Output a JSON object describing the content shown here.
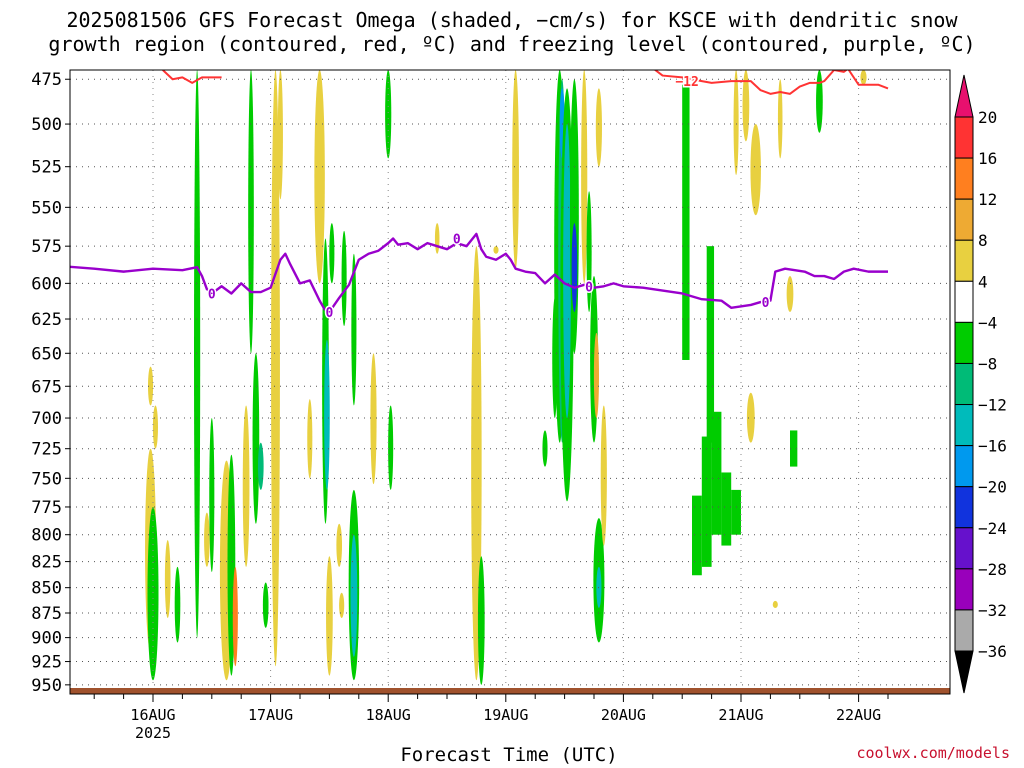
{
  "title": {
    "line1": "2025081506 GFS Forecast Omega (shaded, −cm/s) for KSCE with dendritic snow",
    "line2": "growth region (contoured, red, ºC) and freezing level (contoured, purple, ºC)"
  },
  "credit": "coolwx.com/models",
  "chart_data": {
    "type": "heatmap",
    "xlabel": "Forecast Time (UTC)",
    "ylabel": "",
    "x_ticks": [
      "16AUG",
      "17AUG",
      "18AUG",
      "19AUG",
      "20AUG",
      "21AUG",
      "22AUG"
    ],
    "x_tick_sub": "2025",
    "x_range_hours": [
      -20,
      150
    ],
    "y_ticks": [
      475,
      500,
      525,
      550,
      575,
      600,
      625,
      650,
      675,
      700,
      725,
      750,
      775,
      800,
      825,
      850,
      875,
      900,
      925,
      950
    ],
    "y_range_hpa": [
      470,
      960
    ],
    "grid": true,
    "colorbar": {
      "labels": [
        "20",
        "16",
        "12",
        "8",
        "4",
        "−4",
        "−8",
        "−12",
        "−16",
        "−20",
        "−24",
        "−28",
        "−32",
        "−36"
      ],
      "colors": [
        "#ff3333",
        "#ff7f1f",
        "#eeaa33",
        "#e8d040",
        "#ffffff",
        "#00cc00",
        "#00bb77",
        "#00bbbb",
        "#0099ee",
        "#1133dd",
        "#6611cc",
        "#9900bb",
        "#aaaaaa"
      ],
      "top_arrow": "#e8106e",
      "bottom_arrow": "#000000"
    },
    "freezing_level": {
      "label": "0",
      "color": "#9900cc",
      "points": [
        [
          -20,
          588
        ],
        [
          -12,
          590
        ],
        [
          -6,
          592
        ],
        [
          0,
          590
        ],
        [
          6,
          591
        ],
        [
          9,
          589
        ],
        [
          10,
          595
        ],
        [
          11,
          604
        ],
        [
          12,
          607
        ],
        [
          14,
          602
        ],
        [
          16,
          607
        ],
        [
          18,
          600
        ],
        [
          20,
          606
        ],
        [
          22,
          606
        ],
        [
          24,
          603
        ],
        [
          26,
          584
        ],
        [
          27,
          580
        ],
        [
          28,
          587
        ],
        [
          30,
          600
        ],
        [
          32,
          598
        ],
        [
          34,
          612
        ],
        [
          35,
          618
        ],
        [
          36,
          620
        ],
        [
          38,
          610
        ],
        [
          40,
          601
        ],
        [
          42,
          584
        ],
        [
          44,
          580
        ],
        [
          46,
          578
        ],
        [
          48,
          573
        ],
        [
          49,
          570
        ],
        [
          50,
          574
        ],
        [
          52,
          573
        ],
        [
          54,
          577
        ],
        [
          56,
          573
        ],
        [
          58,
          575
        ],
        [
          60,
          577
        ],
        [
          62,
          573
        ],
        [
          64,
          575
        ],
        [
          66,
          567
        ],
        [
          67,
          577
        ],
        [
          68,
          582
        ],
        [
          70,
          584
        ],
        [
          72,
          580
        ],
        [
          73,
          584
        ],
        [
          74,
          590
        ],
        [
          76,
          592
        ],
        [
          78,
          593
        ],
        [
          80,
          600
        ],
        [
          82,
          594
        ],
        [
          84,
          600
        ],
        [
          86,
          603
        ],
        [
          88,
          601
        ],
        [
          90,
          603
        ],
        [
          92,
          602
        ],
        [
          94,
          600
        ],
        [
          96,
          602
        ],
        [
          100,
          603
        ],
        [
          104,
          605
        ],
        [
          108,
          607
        ],
        [
          112,
          611
        ],
        [
          116,
          612
        ],
        [
          118,
          617
        ],
        [
          122,
          615
        ],
        [
          124,
          613
        ],
        [
          125,
          613
        ],
        [
          126,
          612
        ],
        [
          127,
          592
        ],
        [
          129,
          590
        ],
        [
          133,
          592
        ],
        [
          135,
          595
        ],
        [
          137,
          595
        ],
        [
          139,
          597
        ],
        [
          141,
          592
        ],
        [
          143,
          590
        ],
        [
          146,
          592
        ],
        [
          150,
          592
        ]
      ]
    },
    "dgz_level": {
      "label": "−12",
      "color": "#ff3333",
      "segments": [
        [
          [
            2,
            470
          ],
          [
            4,
            475
          ],
          [
            6,
            474
          ],
          [
            8,
            477
          ],
          [
            10,
            474
          ],
          [
            14,
            474
          ]
        ],
        [
          [
            102,
            469
          ],
          [
            104,
            473
          ],
          [
            108,
            474
          ],
          [
            112,
            476
          ],
          [
            114,
            477
          ],
          [
            118,
            476
          ],
          [
            122,
            476
          ],
          [
            124,
            481
          ],
          [
            126,
            483
          ],
          [
            128,
            482
          ],
          [
            130,
            483
          ],
          [
            132,
            479
          ],
          [
            134,
            477
          ],
          [
            136,
            477
          ],
          [
            137,
            476
          ],
          [
            139,
            470
          ],
          [
            141,
            471
          ],
          [
            142,
            469
          ]
        ],
        [
          [
            142,
            470
          ],
          [
            144,
            478
          ],
          [
            148,
            478
          ],
          [
            150,
            480
          ]
        ]
      ]
    },
    "terrain_color": "#a0522d",
    "shaded_omega": [
      {
        "t": -0.5,
        "p1": 725,
        "p2": 915,
        "w": 1.6,
        "v": 6
      },
      {
        "t": -0.5,
        "p1": 660,
        "p2": 690,
        "w": 0.5,
        "v": 6
      },
      {
        "t": 0.5,
        "p1": 690,
        "p2": 725,
        "w": 0.5,
        "v": 6
      },
      {
        "t": 0,
        "p1": 775,
        "p2": 945,
        "w": 1.6,
        "v": -6
      },
      {
        "t": 3,
        "p1": 805,
        "p2": 880,
        "w": 0.6,
        "v": 6
      },
      {
        "t": 5,
        "p1": 830,
        "p2": 905,
        "w": 0.6,
        "v": -6
      },
      {
        "t": 9,
        "p1": 470,
        "p2": 900,
        "w": 0.7,
        "v": -6
      },
      {
        "t": 11,
        "p1": 780,
        "p2": 830,
        "w": 0.6,
        "v": 6
      },
      {
        "t": 12,
        "p1": 700,
        "p2": 835,
        "w": 0.5,
        "v": -6
      },
      {
        "t": 15,
        "p1": 735,
        "p2": 945,
        "w": 2.0,
        "v": 6
      },
      {
        "t": 16,
        "p1": 730,
        "p2": 940,
        "w": 1.0,
        "v": -6
      },
      {
        "t": 16.8,
        "p1": 830,
        "p2": 930,
        "w": 0.5,
        "v": 16
      },
      {
        "t": 19,
        "p1": 690,
        "p2": 830,
        "w": 0.8,
        "v": 6
      },
      {
        "t": 20,
        "p1": 470,
        "p2": 650,
        "w": 0.6,
        "v": -6
      },
      {
        "t": 21,
        "p1": 650,
        "p2": 790,
        "w": 0.8,
        "v": -6
      },
      {
        "t": 22,
        "p1": 720,
        "p2": 760,
        "w": 0.6,
        "v": -10
      },
      {
        "t": 23,
        "p1": 845,
        "p2": 890,
        "w": 0.6,
        "v": -6
      },
      {
        "t": 25,
        "p1": 470,
        "p2": 930,
        "w": 1.2,
        "v": 6
      },
      {
        "t": 26,
        "p1": 470,
        "p2": 545,
        "w": 0.5,
        "v": 6
      },
      {
        "t": 32,
        "p1": 685,
        "p2": 750,
        "w": 0.5,
        "v": 6
      },
      {
        "t": 34,
        "p1": 470,
        "p2": 600,
        "w": 1.5,
        "v": 6
      },
      {
        "t": 35.2,
        "p1": 570,
        "p2": 790,
        "w": 0.8,
        "v": -6
      },
      {
        "t": 35.5,
        "p1": 640,
        "p2": 760,
        "w": 0.6,
        "v": -14
      },
      {
        "t": 36,
        "p1": 820,
        "p2": 940,
        "w": 0.8,
        "v": 6
      },
      {
        "t": 36.5,
        "p1": 560,
        "p2": 600,
        "w": 0.5,
        "v": -6
      },
      {
        "t": 38,
        "p1": 790,
        "p2": 830,
        "w": 0.6,
        "v": 6
      },
      {
        "t": 38.5,
        "p1": 855,
        "p2": 880,
        "w": 0.5,
        "v": 6
      },
      {
        "t": 39,
        "p1": 565,
        "p2": 630,
        "w": 0.5,
        "v": -6
      },
      {
        "t": 41,
        "p1": 580,
        "p2": 690,
        "w": 0.5,
        "v": -6
      },
      {
        "t": 41,
        "p1": 760,
        "p2": 945,
        "w": 1.5,
        "v": -6
      },
      {
        "t": 41,
        "p1": 800,
        "p2": 920,
        "w": 0.8,
        "v": -14
      },
      {
        "t": 45,
        "p1": 650,
        "p2": 755,
        "w": 0.7,
        "v": 6
      },
      {
        "t": 48,
        "p1": 470,
        "p2": 520,
        "w": 0.7,
        "v": -6
      },
      {
        "t": 48.5,
        "p1": 690,
        "p2": 760,
        "w": 0.5,
        "v": -6
      },
      {
        "t": 58,
        "p1": 560,
        "p2": 580,
        "w": 0.4,
        "v": 6
      },
      {
        "t": 66,
        "p1": 575,
        "p2": 945,
        "w": 1.5,
        "v": 6
      },
      {
        "t": 67,
        "p1": 820,
        "p2": 950,
        "w": 0.8,
        "v": -6
      },
      {
        "t": 70,
        "p1": 575,
        "p2": 580,
        "w": 0.5,
        "v": 6
      },
      {
        "t": 74,
        "p1": 470,
        "p2": 590,
        "w": 0.8,
        "v": 6
      },
      {
        "t": 80,
        "p1": 710,
        "p2": 740,
        "w": 0.5,
        "v": -6
      },
      {
        "t": 82,
        "p1": 610,
        "p2": 700,
        "w": 0.5,
        "v": -6
      },
      {
        "t": 83,
        "p1": 470,
        "p2": 720,
        "w": 1.6,
        "v": -6
      },
      {
        "t": 83.5,
        "p1": 475,
        "p2": 720,
        "w": 1.0,
        "v": -10
      },
      {
        "t": 83.5,
        "p1": 480,
        "p2": 520,
        "w": 0.5,
        "v": -18
      },
      {
        "t": 84.5,
        "p1": 480,
        "p2": 770,
        "w": 2.0,
        "v": -6
      },
      {
        "t": 84.5,
        "p1": 500,
        "p2": 700,
        "w": 1.0,
        "v": -12
      },
      {
        "t": 86,
        "p1": 475,
        "p2": 650,
        "w": 1.2,
        "v": -6
      },
      {
        "t": 86,
        "p1": 560,
        "p2": 620,
        "w": 0.6,
        "v": -20
      },
      {
        "t": 88,
        "p1": 470,
        "p2": 600,
        "w": 0.7,
        "v": 6
      },
      {
        "t": 89,
        "p1": 540,
        "p2": 620,
        "w": 0.5,
        "v": -6
      },
      {
        "t": 90,
        "p1": 595,
        "p2": 720,
        "w": 1.0,
        "v": -6
      },
      {
        "t": 90.5,
        "p1": 635,
        "p2": 700,
        "w": 0.5,
        "v": 10
      },
      {
        "t": 91,
        "p1": 480,
        "p2": 525,
        "w": 0.7,
        "v": 6
      },
      {
        "t": 91,
        "p1": 785,
        "p2": 905,
        "w": 1.6,
        "v": -6
      },
      {
        "t": 91,
        "p1": 830,
        "p2": 870,
        "w": 0.5,
        "v": -12
      },
      {
        "t": 92,
        "p1": 690,
        "p2": 810,
        "w": 0.7,
        "v": 6
      },
      {
        "t": 119,
        "p1": 470,
        "p2": 530,
        "w": 0.5,
        "v": 6
      },
      {
        "t": 121,
        "p1": 470,
        "p2": 510,
        "w": 0.8,
        "v": 6
      },
      {
        "t": 123,
        "p1": 500,
        "p2": 555,
        "w": 1.5,
        "v": 6
      },
      {
        "t": 128,
        "p1": 475,
        "p2": 520,
        "w": 0.4,
        "v": 6
      },
      {
        "t": 130,
        "p1": 595,
        "p2": 620,
        "w": 0.8,
        "v": 6
      },
      {
        "t": 136,
        "p1": 470,
        "p2": 505,
        "w": 0.8,
        "v": -6
      },
      {
        "t": 145,
        "p1": 470,
        "p2": 478,
        "w": 0.7,
        "v": 6
      },
      {
        "t": 122,
        "p1": 680,
        "p2": 720,
        "w": 1.0,
        "v": 6
      },
      {
        "t": 127,
        "p1": 863,
        "p2": 870,
        "w": 0.5,
        "v": 6
      }
    ],
    "shaded_blocks": [
      {
        "t1": 108,
        "t2": 109.5,
        "p1": 478,
        "p2": 655,
        "v": -6
      },
      {
        "t1": 110,
        "t2": 112,
        "p1": 765,
        "p2": 838,
        "v": -6
      },
      {
        "t1": 112,
        "t2": 114,
        "p1": 715,
        "p2": 830,
        "v": -6
      },
      {
        "t1": 113,
        "t2": 114.5,
        "p1": 575,
        "p2": 720,
        "v": -6
      },
      {
        "t1": 114,
        "t2": 116,
        "p1": 695,
        "p2": 800,
        "v": -6
      },
      {
        "t1": 116,
        "t2": 118,
        "p1": 745,
        "p2": 810,
        "v": -6
      },
      {
        "t1": 118,
        "t2": 120,
        "p1": 760,
        "p2": 800,
        "v": -6
      },
      {
        "t1": 130,
        "t2": 131.5,
        "p1": 710,
        "p2": 740,
        "v": -6
      }
    ]
  }
}
